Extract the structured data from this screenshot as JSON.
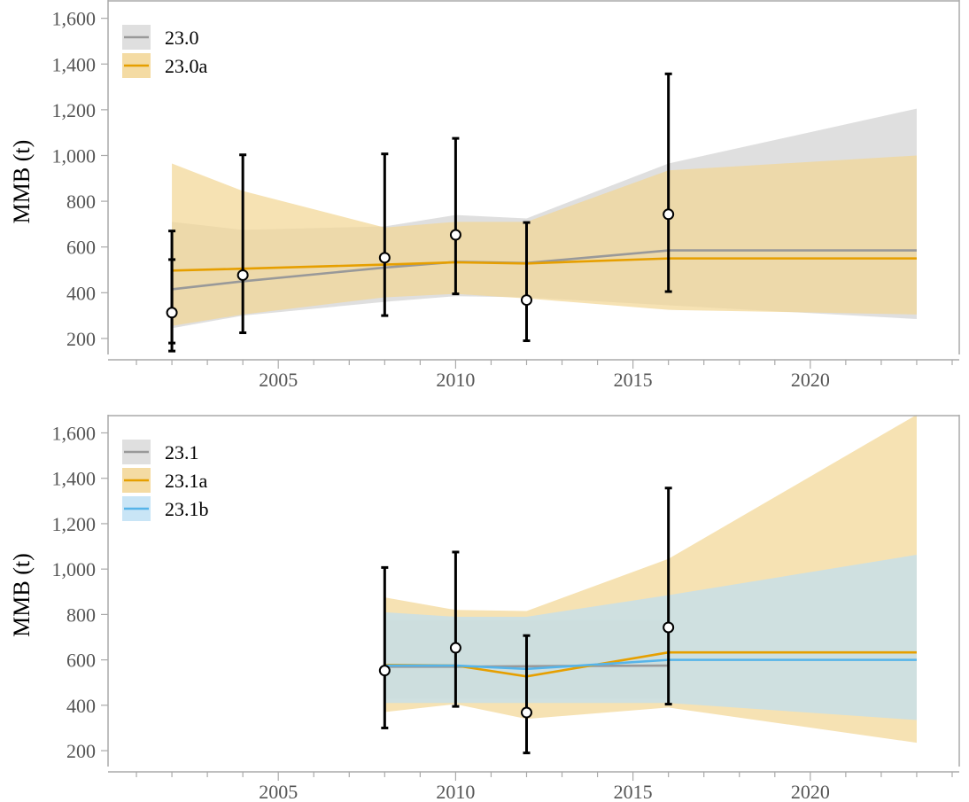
{
  "chart_data": [
    {
      "type": "line",
      "title": "",
      "xlabel": "",
      "ylabel": "MMB (t)",
      "xlim": [
        2000.2,
        2024.2
      ],
      "ylim": [
        130,
        1680
      ],
      "x_ticks": [
        2005,
        2010,
        2015,
        2020
      ],
      "y_ticks": [
        200,
        400,
        600,
        800,
        1000,
        1200,
        1400,
        1600
      ],
      "y_tick_labels": [
        "200",
        "400",
        "600",
        "800",
        "1,000",
        "1,200",
        "1,400",
        "1,600"
      ],
      "grid": false,
      "legend_position": "top-left",
      "series": [
        {
          "name": "23.0",
          "color": "#999999",
          "band_color": "#d9d9d9",
          "x": [
            2002,
            2004,
            2008,
            2010,
            2012,
            2016,
            2023
          ],
          "y": [
            415,
            450,
            510,
            535,
            530,
            585,
            585
          ],
          "lower": [
            245,
            300,
            360,
            385,
            380,
            345,
            285
          ],
          "upper": [
            710,
            675,
            690,
            740,
            725,
            965,
            1205
          ]
        },
        {
          "name": "23.0a",
          "color": "#e69f00",
          "band_color": "#f2d593",
          "x": [
            2002,
            2004,
            2008,
            2010,
            2012,
            2016,
            2023
          ],
          "y": [
            497,
            505,
            523,
            533,
            528,
            550,
            550
          ],
          "lower": [
            255,
            305,
            380,
            395,
            375,
            325,
            305
          ],
          "upper": [
            965,
            845,
            685,
            710,
            710,
            935,
            1000
          ]
        }
      ],
      "observations": {
        "x": [
          2002,
          2004,
          2008,
          2010,
          2012,
          2016
        ],
        "y": [
          313,
          477,
          553,
          653,
          368,
          743
        ],
        "lower": [
          145,
          225,
          300,
          395,
          190,
          405
        ],
        "upper": [
          670,
          1003,
          1007,
          1075,
          707,
          1357
        ],
        "extra_errorbars": [
          {
            "x": 2002,
            "lower": 180,
            "upper": 545
          }
        ]
      }
    },
    {
      "type": "line",
      "title": "",
      "xlabel": "",
      "ylabel": "MMB (t)",
      "xlim": [
        2000.2,
        2024.2
      ],
      "ylim": [
        130,
        1680
      ],
      "x_ticks": [
        2005,
        2010,
        2015,
        2020
      ],
      "y_ticks": [
        200,
        400,
        600,
        800,
        1000,
        1200,
        1400,
        1600
      ],
      "y_tick_labels": [
        "200",
        "400",
        "600",
        "800",
        "1,000",
        "1,200",
        "1,400",
        "1,600"
      ],
      "grid": false,
      "legend_position": "top-left",
      "series": [
        {
          "name": "23.1",
          "color": "#999999",
          "band_color": "#d9d9d9",
          "x": [
            2008,
            2010,
            2012,
            2016
          ],
          "y": [
            570,
            570,
            572,
            575
          ],
          "lower": [
            430,
            430,
            430,
            430
          ],
          "upper": [
            775,
            775,
            775,
            775
          ]
        },
        {
          "name": "23.1a",
          "color": "#e69f00",
          "band_color": "#f2d593",
          "x": [
            2008,
            2010,
            2012,
            2016,
            2023
          ],
          "y": [
            578,
            575,
            527,
            633,
            633
          ],
          "lower": [
            370,
            405,
            340,
            390,
            235
          ],
          "upper": [
            875,
            820,
            815,
            1045,
            1680
          ]
        },
        {
          "name": "23.1b",
          "color": "#56b4e9",
          "band_color": "#bfe0f4",
          "x": [
            2008,
            2010,
            2012,
            2016,
            2023
          ],
          "y": [
            575,
            575,
            560,
            600,
            600
          ],
          "lower": [
            410,
            410,
            410,
            410,
            335
          ],
          "upper": [
            810,
            790,
            790,
            885,
            1063
          ]
        }
      ],
      "observations": {
        "x": [
          2008,
          2010,
          2012,
          2016
        ],
        "y": [
          553,
          653,
          368,
          743
        ],
        "lower": [
          300,
          395,
          190,
          405
        ],
        "upper": [
          1007,
          1075,
          707,
          1357
        ],
        "extra_errorbars": []
      }
    }
  ]
}
